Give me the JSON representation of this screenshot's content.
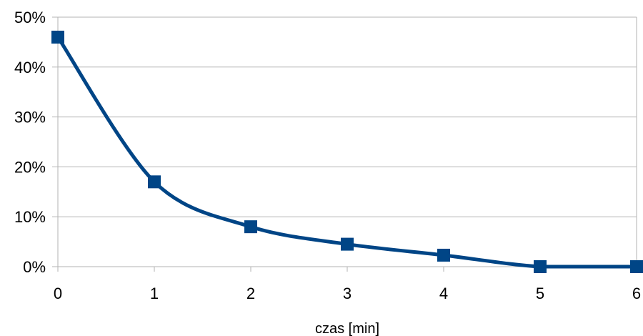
{
  "chart_data": {
    "type": "line",
    "title": "",
    "xlabel": "czas [min]",
    "ylabel": "",
    "x": [
      0,
      1,
      2,
      3,
      4,
      5,
      6
    ],
    "series": [
      {
        "values": [
          46,
          17,
          8,
          4.5,
          2.3,
          0,
          0
        ],
        "color": "#004586",
        "marker": "square",
        "smooth": true
      }
    ],
    "xlim": [
      0,
      6
    ],
    "ylim": [
      0,
      50
    ],
    "xticks": [
      "0",
      "1",
      "2",
      "3",
      "4",
      "5",
      "6"
    ],
    "yticks": [
      "0%",
      "10%",
      "20%",
      "30%",
      "40%",
      "50%"
    ],
    "grid": true,
    "legend": "none"
  }
}
